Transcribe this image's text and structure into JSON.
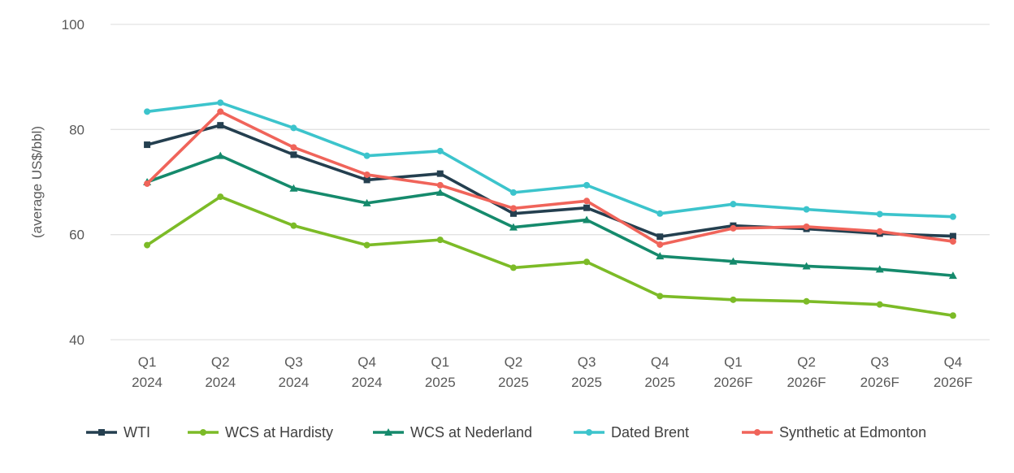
{
  "chart_data": {
    "type": "line",
    "title": "",
    "xlabel": "",
    "ylabel": "(average US$/bbl)",
    "ylim": [
      40,
      100
    ],
    "yticks": [
      40,
      60,
      80,
      100
    ],
    "grid": true,
    "legend_position": "bottom",
    "categories": [
      [
        "Q1",
        "2024"
      ],
      [
        "Q2",
        "2024"
      ],
      [
        "Q3",
        "2024"
      ],
      [
        "Q4",
        "2024"
      ],
      [
        "Q1",
        "2025"
      ],
      [
        "Q2",
        "2025"
      ],
      [
        "Q3",
        "2025"
      ],
      [
        "Q4",
        "2025"
      ],
      [
        "Q1",
        "2026F"
      ],
      [
        "Q2",
        "2026F"
      ],
      [
        "Q3",
        "2026F"
      ],
      [
        "Q4",
        "2026F"
      ]
    ],
    "series": [
      {
        "name": "WTI",
        "color": "#243f4f",
        "marker": "square",
        "values": [
          77.1,
          80.8,
          75.2,
          70.4,
          71.6,
          64.0,
          65.1,
          59.6,
          61.7,
          61.1,
          60.2,
          59.7
        ]
      },
      {
        "name": "WCS at Hardisty",
        "color": "#7cbb27",
        "marker": "circle",
        "values": [
          58.0,
          67.2,
          61.7,
          58.0,
          59.0,
          53.7,
          54.8,
          48.3,
          47.6,
          47.3,
          46.7,
          44.6
        ]
      },
      {
        "name": "WCS at Nederland",
        "color": "#158a6c",
        "marker": "triangle",
        "values": [
          70.0,
          75.0,
          68.8,
          66.0,
          68.0,
          61.4,
          62.8,
          55.9,
          54.9,
          54.0,
          53.4,
          52.2
        ]
      },
      {
        "name": "Dated Brent",
        "color": "#3cc4cc",
        "marker": "circle",
        "values": [
          83.4,
          85.1,
          80.3,
          75.0,
          75.9,
          68.0,
          69.4,
          64.0,
          65.8,
          64.8,
          63.9,
          63.4
        ]
      },
      {
        "name": "Synthetic at Edmonton",
        "color": "#f0645a",
        "marker": "circle",
        "values": [
          69.7,
          83.4,
          76.6,
          71.4,
          69.4,
          65.0,
          66.4,
          58.1,
          61.2,
          61.5,
          60.6,
          58.7
        ]
      }
    ]
  }
}
